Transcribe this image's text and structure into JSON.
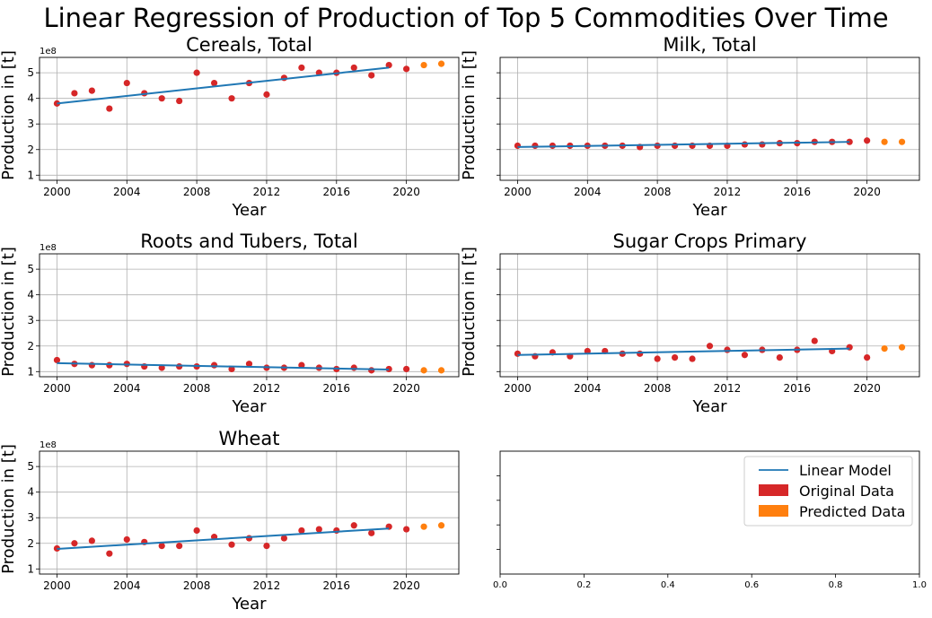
{
  "figure": {
    "title": "Linear Regression of Production of Top 5 Commodities Over Time"
  },
  "colors": {
    "original": "#d62728",
    "predicted": "#ff7f0e",
    "model": "#1f77b4",
    "grid": "#b0b0b0"
  },
  "chart_data": [
    {
      "type": "scatter",
      "title": "Cereals, Total",
      "xlabel": "Year",
      "ylabel": "Production in [t]",
      "y_offset_label": "1e8",
      "xlim": [
        1999,
        2023
      ],
      "ylim": [
        0.8,
        5.6
      ],
      "xticks": [
        2000,
        2004,
        2008,
        2012,
        2016,
        2020
      ],
      "yticks": [
        1,
        2,
        3,
        4,
        5
      ],
      "grid": true,
      "series": [
        {
          "name": "Original Data",
          "role": "original",
          "x": [
            2000,
            2001,
            2002,
            2003,
            2004,
            2005,
            2006,
            2007,
            2008,
            2009,
            2010,
            2011,
            2012,
            2013,
            2014,
            2015,
            2016,
            2017,
            2018,
            2019,
            2020
          ],
          "y": [
            3.8,
            4.2,
            4.3,
            3.6,
            4.6,
            4.2,
            4.0,
            3.9,
            5.0,
            4.6,
            4.0,
            4.6,
            4.15,
            4.8,
            5.2,
            5.0,
            5.0,
            5.2,
            4.9,
            5.3,
            5.15
          ]
        },
        {
          "name": "Predicted Data",
          "role": "predicted",
          "x": [
            2021,
            2022
          ],
          "y": [
            5.3,
            5.35
          ]
        },
        {
          "name": "Linear Model",
          "role": "model",
          "x": [
            2000,
            2019
          ],
          "y": [
            3.8,
            5.2
          ]
        }
      ]
    },
    {
      "type": "scatter",
      "title": "Milk, Total",
      "xlabel": "Year",
      "ylabel": "Production in [t]",
      "y_offset_label": "",
      "xlim": [
        1999,
        2023
      ],
      "ylim": [
        0.8,
        5.6
      ],
      "xticks": [
        2000,
        2004,
        2008,
        2012,
        2016,
        2020
      ],
      "yticks": [],
      "grid": true,
      "series": [
        {
          "name": "Original Data",
          "role": "original",
          "x": [
            2000,
            2001,
            2002,
            2003,
            2004,
            2005,
            2006,
            2007,
            2008,
            2009,
            2010,
            2011,
            2012,
            2013,
            2014,
            2015,
            2016,
            2017,
            2018,
            2019,
            2020
          ],
          "y": [
            2.15,
            2.15,
            2.15,
            2.15,
            2.15,
            2.15,
            2.15,
            2.1,
            2.15,
            2.15,
            2.15,
            2.15,
            2.15,
            2.2,
            2.2,
            2.25,
            2.25,
            2.3,
            2.3,
            2.3,
            2.35
          ]
        },
        {
          "name": "Predicted Data",
          "role": "predicted",
          "x": [
            2021,
            2022
          ],
          "y": [
            2.3,
            2.3
          ]
        },
        {
          "name": "Linear Model",
          "role": "model",
          "x": [
            2000,
            2019
          ],
          "y": [
            2.1,
            2.3
          ]
        }
      ]
    },
    {
      "type": "scatter",
      "title": "Roots and Tubers, Total",
      "xlabel": "Year",
      "ylabel": "Production in [t]",
      "y_offset_label": "1e8",
      "xlim": [
        1999,
        2023
      ],
      "ylim": [
        0.8,
        5.6
      ],
      "xticks": [
        2000,
        2004,
        2008,
        2012,
        2016,
        2020
      ],
      "yticks": [
        1,
        2,
        3,
        4,
        5
      ],
      "grid": true,
      "series": [
        {
          "name": "Original Data",
          "role": "original",
          "x": [
            2000,
            2001,
            2002,
            2003,
            2004,
            2005,
            2006,
            2007,
            2008,
            2009,
            2010,
            2011,
            2012,
            2013,
            2014,
            2015,
            2016,
            2017,
            2018,
            2019,
            2020
          ],
          "y": [
            1.45,
            1.3,
            1.25,
            1.25,
            1.3,
            1.2,
            1.15,
            1.2,
            1.2,
            1.25,
            1.1,
            1.3,
            1.15,
            1.15,
            1.25,
            1.15,
            1.1,
            1.15,
            1.05,
            1.1,
            1.1
          ]
        },
        {
          "name": "Predicted Data",
          "role": "predicted",
          "x": [
            2021,
            2022
          ],
          "y": [
            1.05,
            1.05
          ]
        },
        {
          "name": "Linear Model",
          "role": "model",
          "x": [
            2000,
            2019
          ],
          "y": [
            1.33,
            1.08
          ]
        }
      ]
    },
    {
      "type": "scatter",
      "title": "Sugar Crops Primary",
      "xlabel": "Year",
      "ylabel": "Production in [t]",
      "y_offset_label": "",
      "xlim": [
        1999,
        2023
      ],
      "ylim": [
        0.8,
        5.6
      ],
      "xticks": [
        2000,
        2004,
        2008,
        2012,
        2016,
        2020
      ],
      "yticks": [],
      "grid": true,
      "series": [
        {
          "name": "Original Data",
          "role": "original",
          "x": [
            2000,
            2001,
            2002,
            2003,
            2004,
            2005,
            2006,
            2007,
            2008,
            2009,
            2010,
            2011,
            2012,
            2013,
            2014,
            2015,
            2016,
            2017,
            2018,
            2019,
            2020
          ],
          "y": [
            1.7,
            1.6,
            1.75,
            1.6,
            1.8,
            1.8,
            1.7,
            1.7,
            1.5,
            1.55,
            1.5,
            2.0,
            1.85,
            1.65,
            1.85,
            1.55,
            1.85,
            2.2,
            1.8,
            1.95,
            1.55
          ]
        },
        {
          "name": "Predicted Data",
          "role": "predicted",
          "x": [
            2021,
            2022
          ],
          "y": [
            1.9,
            1.95
          ]
        },
        {
          "name": "Linear Model",
          "role": "model",
          "x": [
            2000,
            2019
          ],
          "y": [
            1.65,
            1.9
          ]
        }
      ]
    },
    {
      "type": "scatter",
      "title": "Wheat",
      "xlabel": "Year",
      "ylabel": "Production in [t]",
      "y_offset_label": "1e8",
      "xlim": [
        1999,
        2023
      ],
      "ylim": [
        0.8,
        5.6
      ],
      "xticks": [
        2000,
        2004,
        2008,
        2012,
        2016,
        2020
      ],
      "yticks": [
        1,
        2,
        3,
        4,
        5
      ],
      "grid": true,
      "series": [
        {
          "name": "Original Data",
          "role": "original",
          "x": [
            2000,
            2001,
            2002,
            2003,
            2004,
            2005,
            2006,
            2007,
            2008,
            2009,
            2010,
            2011,
            2012,
            2013,
            2014,
            2015,
            2016,
            2017,
            2018,
            2019,
            2020
          ],
          "y": [
            1.8,
            2.0,
            2.1,
            1.6,
            2.15,
            2.05,
            1.9,
            1.9,
            2.5,
            2.25,
            1.95,
            2.2,
            1.9,
            2.2,
            2.5,
            2.55,
            2.5,
            2.7,
            2.4,
            2.65,
            2.55
          ]
        },
        {
          "name": "Predicted Data",
          "role": "predicted",
          "x": [
            2021,
            2022
          ],
          "y": [
            2.65,
            2.7
          ]
        },
        {
          "name": "Linear Model",
          "role": "model",
          "x": [
            2000,
            2019
          ],
          "y": [
            1.78,
            2.58
          ]
        }
      ]
    },
    {
      "type": "legend_only",
      "xlim": [
        0,
        1
      ],
      "ylim": [
        0,
        1
      ],
      "xticks": [
        0.0,
        0.2,
        0.4,
        0.6,
        0.8,
        1.0
      ],
      "xtick_labels": [
        "0.0",
        "0.2",
        "0.4",
        "0.6",
        "0.8",
        "1.0"
      ],
      "grid": false,
      "legend": {
        "placement": "upper-right",
        "entries": [
          {
            "label": "Linear Model",
            "kind": "line",
            "role": "model"
          },
          {
            "label": "Original Data",
            "kind": "patch",
            "role": "original"
          },
          {
            "label": "Predicted Data",
            "kind": "patch",
            "role": "predicted"
          }
        ]
      }
    }
  ]
}
